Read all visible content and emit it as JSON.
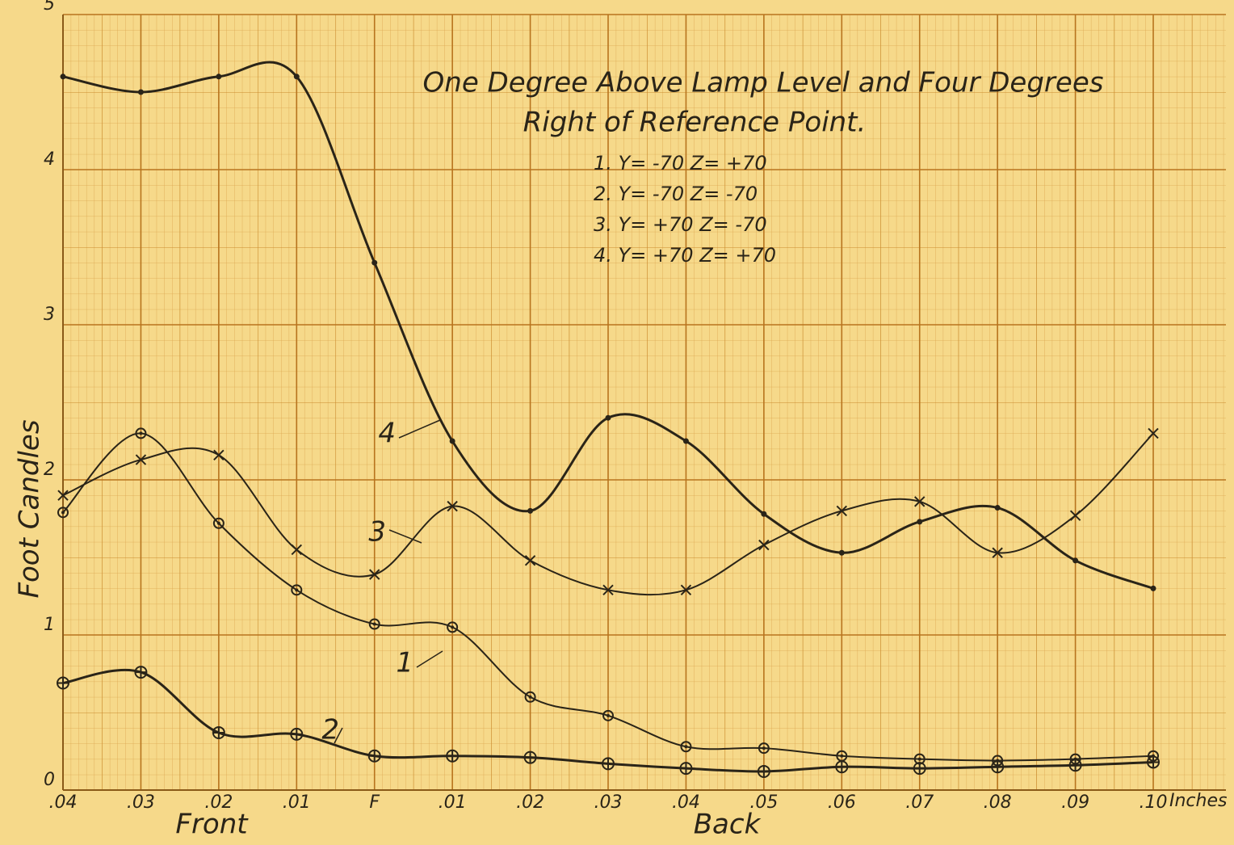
{
  "chart_data": {
    "type": "line",
    "title": [
      "One Degree Above Lamp Level and Four Degrees",
      "Right of Reference Point."
    ],
    "y_label": "Foot Candles",
    "x_group_labels": [
      "Front",
      "Back"
    ],
    "x_unit": "Inches",
    "categories": [
      ".04",
      ".03",
      ".02",
      ".01",
      "F",
      ".01",
      ".02",
      ".03",
      ".04",
      ".05",
      ".06",
      ".07",
      ".08",
      ".09",
      ".10"
    ],
    "ylim": [
      0,
      5
    ],
    "yticks": [
      0,
      1,
      2,
      3,
      4,
      5
    ],
    "grid": true,
    "series": [
      {
        "name": "1. Y= -70   Z= +70",
        "label": "1",
        "marker": "circle-dot",
        "color": "#2a2418",
        "values": [
          1.79,
          2.3,
          1.72,
          1.29,
          1.07,
          1.05,
          0.6,
          0.48,
          0.28,
          0.27,
          0.22,
          0.2,
          0.19,
          0.2,
          0.22
        ]
      },
      {
        "name": "2. Y= -70   Z= -70",
        "label": "2",
        "marker": "circle-plus",
        "color": "#2a2418",
        "values": [
          0.69,
          0.76,
          0.37,
          0.36,
          0.22,
          0.22,
          0.21,
          0.17,
          0.14,
          0.12,
          0.15,
          0.14,
          0.15,
          0.16,
          0.18
        ]
      },
      {
        "name": "3. Y= +70   Z= -70",
        "label": "3",
        "marker": "x",
        "color": "#2a2418",
        "values": [
          1.9,
          2.13,
          2.16,
          1.55,
          1.39,
          1.83,
          1.48,
          1.29,
          1.29,
          1.58,
          1.8,
          1.86,
          1.53,
          1.77,
          2.3
        ]
      },
      {
        "name": "4. Y= +70   Z= +70",
        "label": "4",
        "marker": "dot",
        "color": "#2a2418",
        "values": [
          4.6,
          4.5,
          4.6,
          4.6,
          3.4,
          2.25,
          1.8,
          2.4,
          2.25,
          1.78,
          1.53,
          1.73,
          1.82,
          1.48,
          1.3
        ]
      }
    ]
  }
}
